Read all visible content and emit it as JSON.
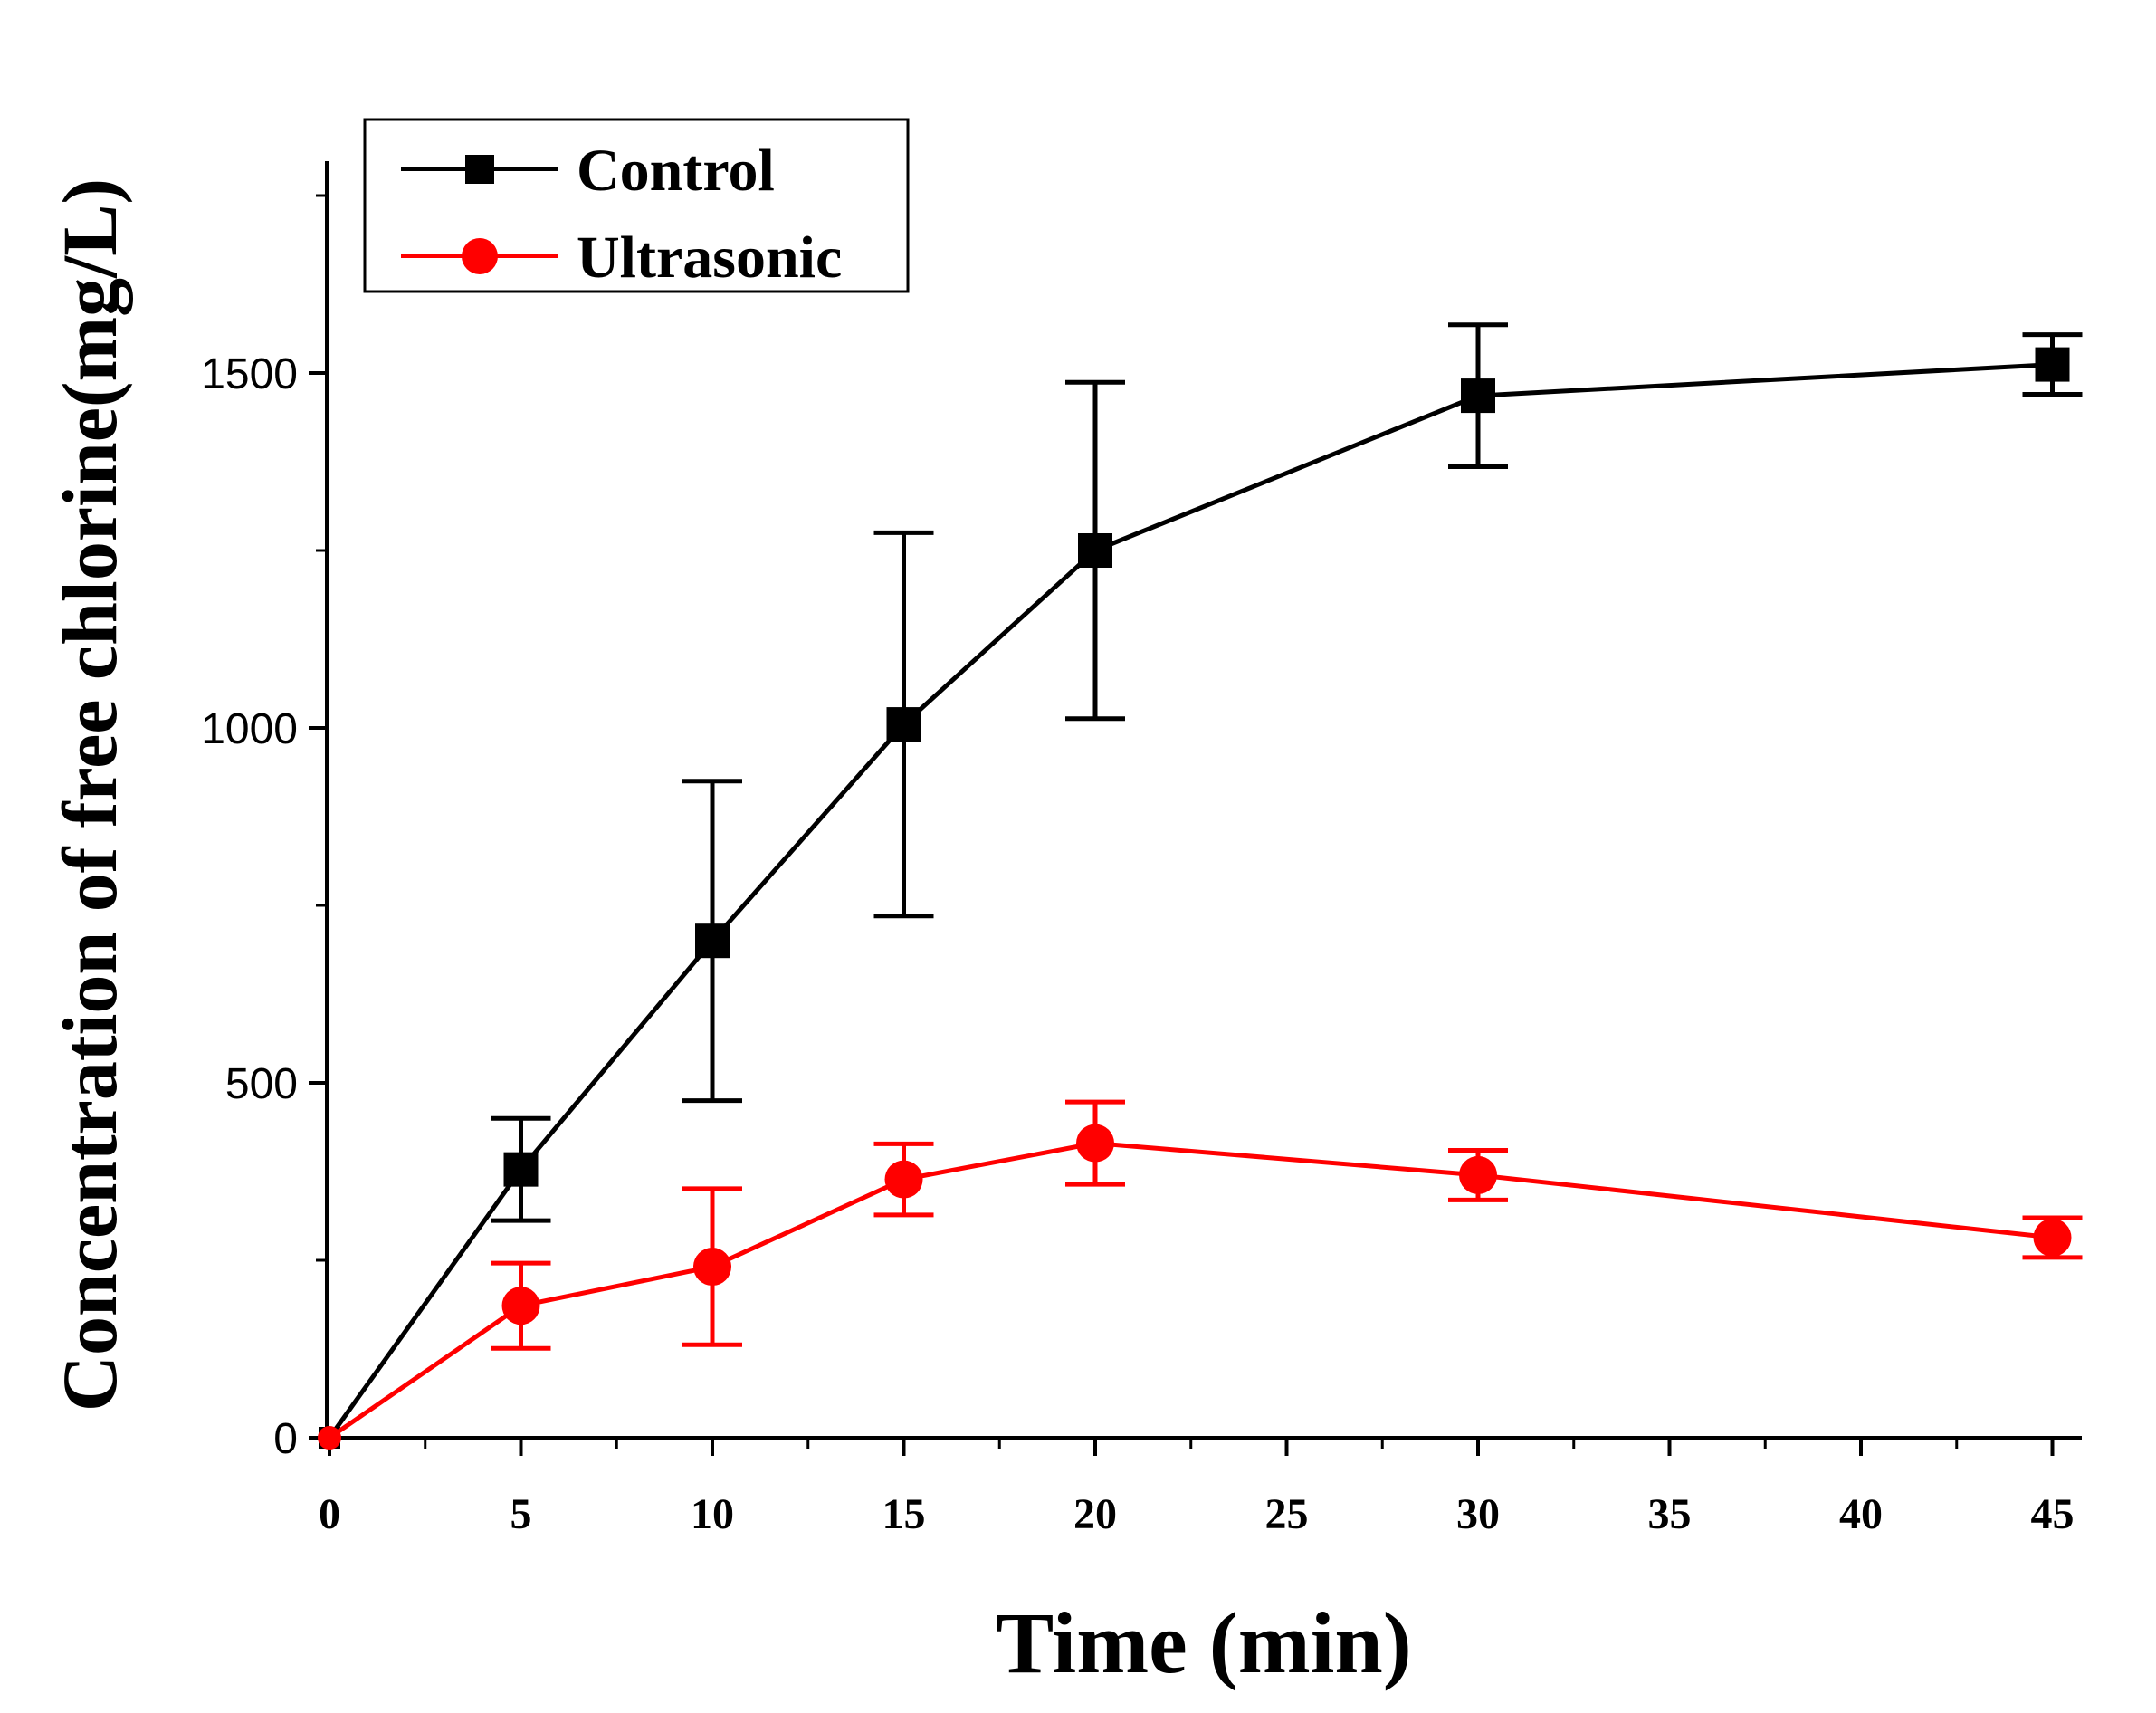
{
  "chart_data": {
    "type": "line",
    "title": "",
    "xlabel": "Time (min)",
    "ylabel": "Concentration of free chlorine(mg/L)",
    "xlim": [
      0,
      46
    ],
    "ylim": [
      0,
      1800
    ],
    "x_major_ticks": [
      0,
      5,
      10,
      15,
      20,
      25,
      30,
      35,
      40,
      45
    ],
    "x_tick_labels": [
      "0",
      "5",
      "10",
      "15",
      "20",
      "25",
      "30",
      "35",
      "40",
      "45"
    ],
    "y_major_ticks": [
      0,
      500,
      1000,
      1500
    ],
    "y_tick_labels": [
      "0",
      "500",
      "1000",
      "1500"
    ],
    "grid": false,
    "legend_position": "top-left",
    "series": [
      {
        "name": "Control",
        "color": "#000000",
        "marker": "square",
        "x": [
          0,
          5,
          10,
          15,
          20,
          30,
          45
        ],
        "y": [
          0,
          378,
          700,
          1005,
          1250,
          1468,
          1512
        ],
        "err": [
          0,
          72,
          225,
          270,
          237,
          100,
          42
        ]
      },
      {
        "name": "Ultrasonic",
        "color": "#ff0000",
        "marker": "circle",
        "x": [
          0,
          5,
          10,
          15,
          20,
          30,
          45
        ],
        "y": [
          0,
          186,
          241,
          364,
          415,
          370,
          282
        ],
        "err": [
          0,
          60,
          110,
          50,
          58,
          35,
          28
        ]
      }
    ]
  }
}
